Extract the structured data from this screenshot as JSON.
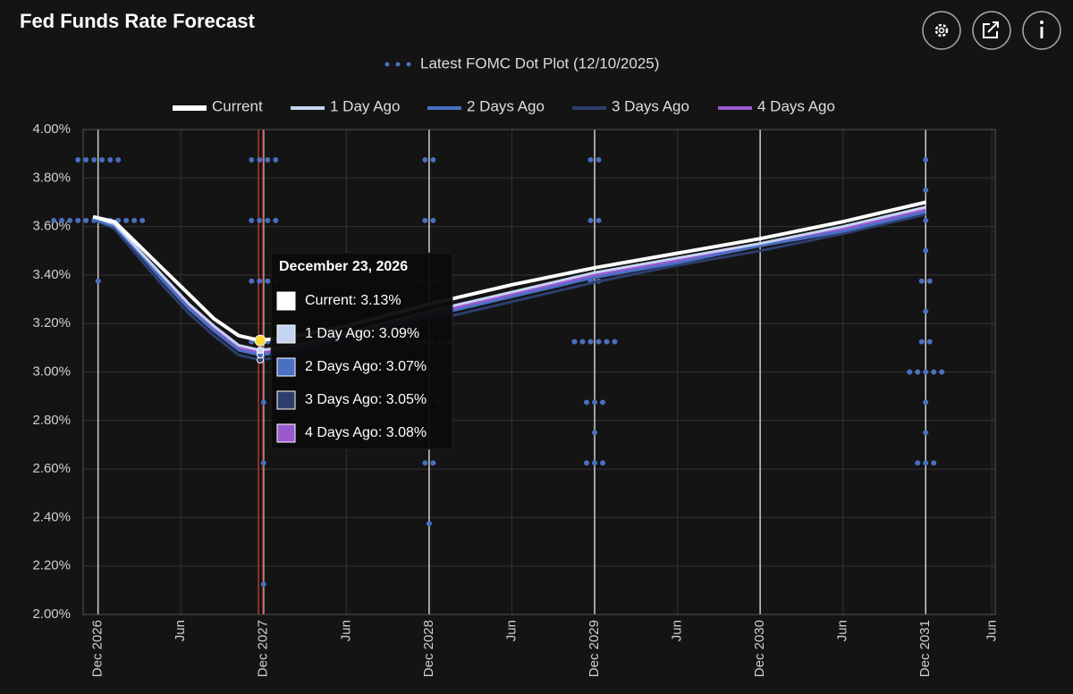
{
  "chart_data": {
    "type": "line",
    "title": "Fed Funds Rate Forecast",
    "x": [
      2025.97,
      2026.1,
      2026.25,
      2026.4,
      2026.55,
      2026.7,
      2026.85,
      2026.98,
      2027.2,
      2027.5,
      2028.0,
      2028.5,
      2029.0,
      2029.5,
      2030.0,
      2030.5,
      2031.0
    ],
    "series": [
      {
        "name": "Current",
        "color": "#ffffff",
        "values": [
          3.64,
          3.62,
          3.52,
          3.42,
          3.32,
          3.22,
          3.15,
          3.13,
          3.15,
          3.19,
          3.28,
          3.36,
          3.43,
          3.49,
          3.55,
          3.62,
          3.7
        ]
      },
      {
        "name": "1 Day Ago",
        "color": "#c5d4f0",
        "values": [
          3.64,
          3.61,
          3.5,
          3.39,
          3.28,
          3.19,
          3.11,
          3.09,
          3.11,
          3.16,
          3.25,
          3.33,
          3.41,
          3.47,
          3.53,
          3.6,
          3.68
        ]
      },
      {
        "name": "2 Days Ago",
        "color": "#4a70c4",
        "values": [
          3.63,
          3.6,
          3.49,
          3.37,
          3.26,
          3.17,
          3.09,
          3.07,
          3.09,
          3.14,
          3.23,
          3.31,
          3.39,
          3.45,
          3.52,
          3.58,
          3.66
        ]
      },
      {
        "name": "3 Days Ago",
        "color": "#2c3e6e",
        "values": [
          3.63,
          3.59,
          3.47,
          3.35,
          3.24,
          3.15,
          3.07,
          3.05,
          3.07,
          3.12,
          3.21,
          3.29,
          3.37,
          3.44,
          3.5,
          3.57,
          3.65
        ]
      },
      {
        "name": "4 Days Ago",
        "color": "#9b59d0",
        "values": [
          3.64,
          3.6,
          3.49,
          3.38,
          3.27,
          3.18,
          3.1,
          3.08,
          3.1,
          3.15,
          3.24,
          3.32,
          3.4,
          3.46,
          3.53,
          3.59,
          3.67
        ]
      }
    ],
    "dot_plot": {
      "name": "Latest FOMC Dot Plot (12/10/2025)",
      "color": "#4a6fc0",
      "x": [
        2026,
        2027,
        2028,
        2029,
        2031
      ],
      "values": [
        [
          3.875,
          3.875,
          3.875,
          3.875,
          3.875,
          3.875,
          3.625,
          3.625,
          3.625,
          3.625,
          3.625,
          3.625,
          3.625,
          3.625,
          3.625,
          3.625,
          3.625,
          3.625,
          3.375
        ],
        [
          3.875,
          3.875,
          3.875,
          3.875,
          3.625,
          3.625,
          3.625,
          3.625,
          3.375,
          3.375,
          3.375,
          3.375,
          3.125,
          3.125,
          3.125,
          3.125,
          2.875,
          2.625,
          2.125
        ],
        [
          3.875,
          3.875,
          3.625,
          3.625,
          3.375,
          3.375,
          3.375,
          3.125,
          3.125,
          3.125,
          3.125,
          3.125,
          3.125,
          2.875,
          2.875,
          2.875,
          2.625,
          2.625,
          2.375
        ],
        [
          3.875,
          3.875,
          3.625,
          3.625,
          3.375,
          3.375,
          3.125,
          3.125,
          3.125,
          3.125,
          3.125,
          3.125,
          2.875,
          2.875,
          2.875,
          2.75,
          2.625,
          2.625,
          2.625
        ],
        [
          3.875,
          3.75,
          3.625,
          3.5,
          3.375,
          3.375,
          3.25,
          3.125,
          3.125,
          3.0,
          3.0,
          3.0,
          3.0,
          3.0,
          2.875,
          2.75,
          2.625,
          2.625,
          2.625
        ]
      ]
    },
    "xlim": [
      2025.91,
      2031.42
    ],
    "xticks": [
      {
        "value": 2026,
        "label": "Dec 2026"
      },
      {
        "value": 2026.5,
        "label": "Jun"
      },
      {
        "value": 2027,
        "label": "Dec 2027"
      },
      {
        "value": 2027.5,
        "label": "Jun"
      },
      {
        "value": 2028,
        "label": "Dec 2028"
      },
      {
        "value": 2028.5,
        "label": "Jun"
      },
      {
        "value": 2029,
        "label": "Dec 2029"
      },
      {
        "value": 2029.5,
        "label": "Jun"
      },
      {
        "value": 2030,
        "label": "Dec 2030"
      },
      {
        "value": 2030.5,
        "label": "Jun"
      },
      {
        "value": 2031,
        "label": "Dec 2031"
      },
      {
        "value": 2031.4,
        "label": "Jun"
      }
    ],
    "ylim": [
      2,
      4
    ],
    "yticks": [
      {
        "value": 2.0,
        "label": "2.00%"
      },
      {
        "value": 2.2,
        "label": "2.20%"
      },
      {
        "value": 2.4,
        "label": "2.40%"
      },
      {
        "value": 2.6,
        "label": "2.60%"
      },
      {
        "value": 2.8,
        "label": "2.80%"
      },
      {
        "value": 3.0,
        "label": "3.00%"
      },
      {
        "value": 3.2,
        "label": "3.20%"
      },
      {
        "value": 3.4,
        "label": "3.40%"
      },
      {
        "value": 3.6,
        "label": "3.60%"
      },
      {
        "value": 3.8,
        "label": "3.80%"
      },
      {
        "value": 4.0,
        "label": "4.00%"
      }
    ],
    "grid": true,
    "tooltip": {
      "index": 7,
      "title": "December 23, 2026",
      "items": [
        "Current: 3.13%",
        "1 Day Ago: 3.09%",
        "2 Days Ago: 3.07%",
        "3 Days Ago: 3.05%",
        "4 Days Ago: 3.08%"
      ]
    }
  }
}
